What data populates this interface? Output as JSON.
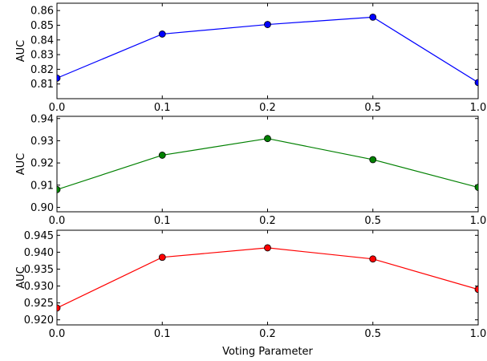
{
  "chart_data": [
    {
      "type": "line",
      "categories": [
        "0.0",
        "0.1",
        "0.2",
        "0.5",
        "1.0"
      ],
      "series": [
        {
          "values": [
            0.814,
            0.844,
            0.8505,
            0.8555,
            0.811
          ]
        }
      ],
      "color": "#0000ff",
      "ylabel": "AUC",
      "xlabel": "",
      "ylim": [
        0.8,
        0.865
      ],
      "yticks": [
        0.81,
        0.82,
        0.83,
        0.84,
        0.85,
        0.86
      ],
      "ytick_labels": [
        "0.81",
        "0.82",
        "0.83",
        "0.84",
        "0.85",
        "0.86"
      ],
      "grid": false
    },
    {
      "type": "line",
      "categories": [
        "0.0",
        "0.1",
        "0.2",
        "0.5",
        "1.0"
      ],
      "series": [
        {
          "values": [
            0.908,
            0.9235,
            0.931,
            0.9215,
            0.909
          ]
        }
      ],
      "color": "#008000",
      "ylabel": "AUC",
      "xlabel": "",
      "ylim": [
        0.898,
        0.941
      ],
      "yticks": [
        0.9,
        0.91,
        0.92,
        0.93,
        0.94
      ],
      "ytick_labels": [
        "0.90",
        "0.91",
        "0.92",
        "0.93",
        "0.94"
      ],
      "grid": false
    },
    {
      "type": "line",
      "categories": [
        "0.0",
        "0.1",
        "0.2",
        "0.5",
        "1.0"
      ],
      "series": [
        {
          "values": [
            0.9235,
            0.9385,
            0.9413,
            0.938,
            0.929
          ]
        }
      ],
      "color": "#ff0000",
      "ylabel": "AUC",
      "xlabel": "Voting Parameter",
      "ylim": [
        0.9185,
        0.9465
      ],
      "yticks": [
        0.92,
        0.925,
        0.93,
        0.935,
        0.94,
        0.945
      ],
      "ytick_labels": [
        "0.920",
        "0.925",
        "0.930",
        "0.935",
        "0.940",
        "0.945"
      ],
      "grid": false
    }
  ]
}
